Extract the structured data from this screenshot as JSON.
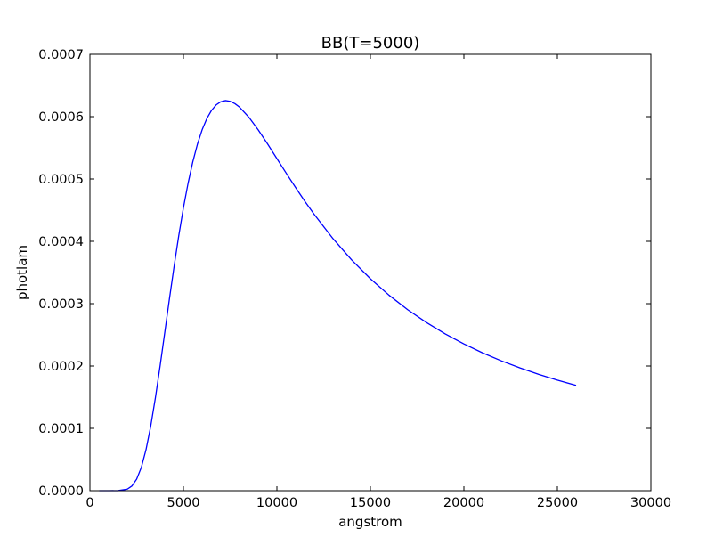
{
  "chart_data": {
    "type": "line",
    "title": "BB(T=5000)",
    "xlabel": "angstrom",
    "ylabel": "photlam",
    "xlim": [
      0,
      30000
    ],
    "ylim": [
      0,
      0.0007
    ],
    "grid": false,
    "x_ticks": [
      0,
      5000,
      10000,
      15000,
      20000,
      25000,
      30000
    ],
    "x_tick_labels": [
      "0",
      "5000",
      "10000",
      "15000",
      "20000",
      "25000",
      "30000"
    ],
    "y_ticks": [
      0,
      0.0001,
      0.0002,
      0.0003,
      0.0004,
      0.0005,
      0.0006,
      0.0007
    ],
    "y_tick_labels": [
      "0.0000",
      "0.0001",
      "0.0002",
      "0.0003",
      "0.0004",
      "0.0005",
      "0.0006",
      "0.0007"
    ],
    "series": [
      {
        "color": "#0000ff",
        "x": [
          500,
          1000,
          1500,
          2000,
          2250,
          2500,
          2750,
          3000,
          3250,
          3500,
          3750,
          4000,
          4250,
          4500,
          4750,
          5000,
          5250,
          5500,
          5750,
          6000,
          6250,
          6500,
          6750,
          7000,
          7250,
          7500,
          7750,
          8000,
          8500,
          9000,
          9500,
          10000,
          10500,
          11000,
          11500,
          12000,
          13000,
          14000,
          15000,
          16000,
          17000,
          18000,
          19000,
          20000,
          21000,
          22000,
          23000,
          24000,
          25000,
          26000
        ],
        "y": [
          0.0,
          0.0,
          1e-07,
          2.5e-06,
          7.6e-06,
          1.85e-05,
          3.74e-05,
          6.58e-05,
          0.0001033,
          0.0001487,
          0.0001995,
          0.0002532,
          0.0003073,
          0.0003597,
          0.0004089,
          0.0004537,
          0.0004933,
          0.0005274,
          0.0005559,
          0.0005789,
          0.0005968,
          0.00061,
          0.0006189,
          0.000624,
          0.0006258,
          0.0006246,
          0.000621,
          0.0006153,
          0.0005991,
          0.0005788,
          0.0005562,
          0.0005327,
          0.0005092,
          0.0004862,
          0.000464,
          0.000443,
          0.0004043,
          0.0003701,
          0.00034,
          0.0003135,
          0.0002902,
          0.0002697,
          0.0002515,
          0.0002354,
          0.0002211,
          0.0002083,
          0.0001969,
          0.0001866,
          0.0001773,
          0.0001689
        ]
      }
    ]
  }
}
